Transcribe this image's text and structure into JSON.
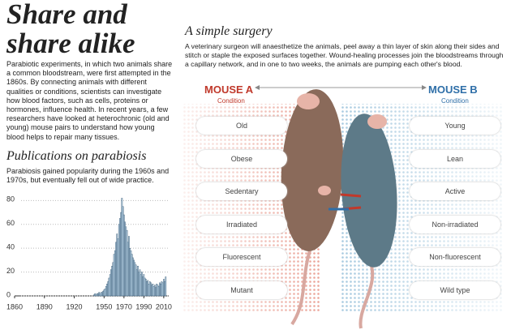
{
  "header": {
    "title": "Share and share alike",
    "intro": "Parabiotic experiments, in which two animals share a common bloodstream, were first attempted in the 1860s. By connecting animals with different qualities or conditions, scientists can investigate how blood factors, such as cells, proteins or hormones, influence health. In recent years, a few researchers have looked at heterochronic (old and young) mouse pairs to understand how young blood helps to repair many tissues."
  },
  "chart_data": {
    "type": "bar",
    "title": "Publications on parabiosis",
    "subtitle": "Parabiosis gained popularity during the 1960s and 1970s, but eventually fell out of wide practice.",
    "x": [
      1940,
      1941,
      1942,
      1943,
      1944,
      1945,
      1946,
      1947,
      1948,
      1949,
      1950,
      1951,
      1952,
      1953,
      1954,
      1955,
      1956,
      1957,
      1958,
      1959,
      1960,
      1961,
      1962,
      1963,
      1964,
      1965,
      1966,
      1967,
      1968,
      1969,
      1970,
      1971,
      1972,
      1973,
      1974,
      1975,
      1976,
      1977,
      1978,
      1979,
      1980,
      1981,
      1982,
      1983,
      1984,
      1985,
      1986,
      1987,
      1988,
      1989,
      1990,
      1991,
      1992,
      1993,
      1994,
      1995,
      1996,
      1997,
      1998,
      1999,
      2000,
      2001,
      2002,
      2003,
      2004,
      2005,
      2006,
      2007,
      2008,
      2009,
      2010,
      2011,
      2012
    ],
    "values": [
      1,
      2,
      1,
      2,
      2,
      3,
      2,
      3,
      3,
      4,
      5,
      6,
      8,
      10,
      12,
      15,
      18,
      22,
      25,
      28,
      35,
      38,
      45,
      52,
      48,
      60,
      65,
      70,
      82,
      75,
      68,
      62,
      58,
      55,
      45,
      50,
      40,
      38,
      35,
      32,
      30,
      28,
      26,
      22,
      25,
      20,
      22,
      18,
      20,
      16,
      18,
      15,
      14,
      12,
      13,
      10,
      12,
      11,
      9,
      10,
      8,
      9,
      7,
      10,
      9,
      8,
      11,
      10,
      12,
      11,
      14,
      12,
      16
    ],
    "color": "#b9d3e6",
    "xlim": [
      1860,
      2015
    ],
    "ylim": [
      0,
      85
    ],
    "xticks": [
      1860,
      1890,
      1920,
      1950,
      1970,
      1990,
      2010
    ],
    "yticks": [
      0,
      20,
      40,
      60,
      80
    ],
    "grid": true
  },
  "surgery": {
    "title": "A simple surgery",
    "text": "A veterinary surgeon will anaesthetize the animals, peel away a thin layer of skin along their sides and stitch or staple the exposed surfaces together. Wound-healing processes join the bloodstreams through a capillary network, and in one to two weeks, the animals are pumping each other's blood.",
    "mouse_a": {
      "label": "MOUSE A",
      "sublabel": "Condition",
      "conditions": [
        "Old",
        "Obese",
        "Sedentary",
        "Irradiated",
        "Fluorescent",
        "Mutant"
      ]
    },
    "mouse_b": {
      "label": "MOUSE B",
      "sublabel": "Condition",
      "conditions": [
        "Young",
        "Lean",
        "Active",
        "Non-irradiated",
        "Non-fluorescent",
        "Wild type"
      ]
    }
  }
}
